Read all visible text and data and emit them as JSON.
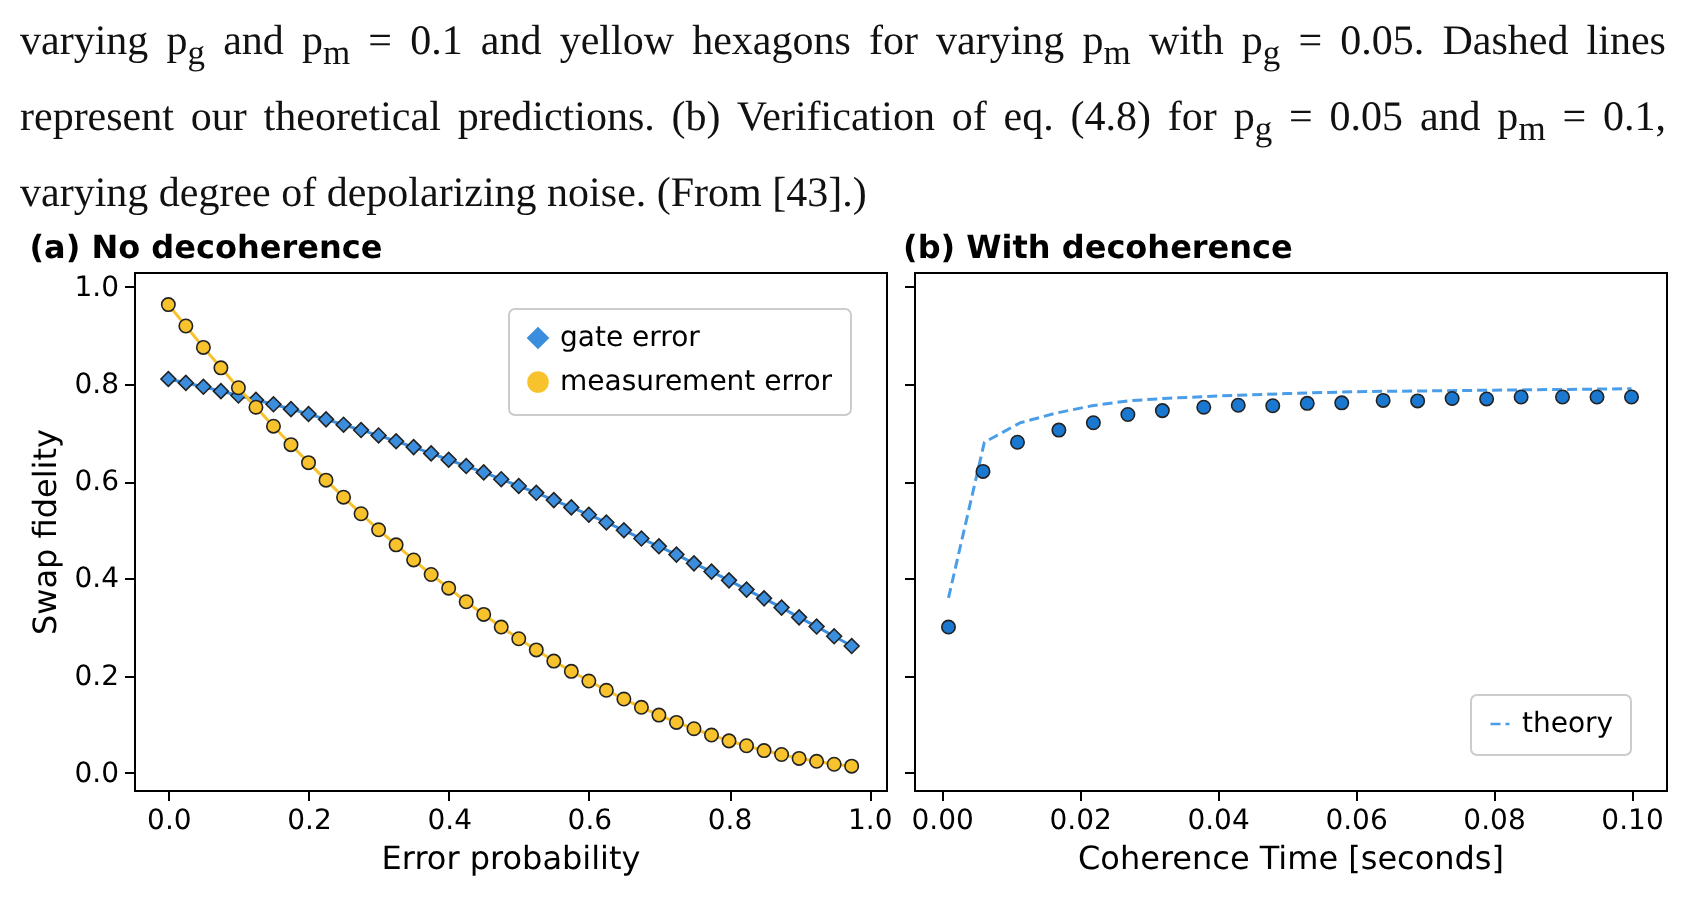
{
  "chart_data": [
    {
      "type": "line",
      "title": "(a) No decoherence",
      "xlabel": "Error probability",
      "ylabel": "Swap fidelity",
      "annotations": [
        "varying p$_{g}$ and p$_{m}$ = 0.1 and yellow hexagons for varying p$_{m}$ with p$_{g}$ = 0.05. Dashed lines represent our theoretical predictions. (b) Verification of eq. (4.8) for p$_{g}$ = 0.05 and p$_{m}$ = 0.1, varying degree of depolarizing noise. (From [43].)"
      ],
      "x": [
        0,
        0.025,
        0.05,
        0.075,
        0.1,
        0.125,
        0.15,
        0.175,
        0.2,
        0.225,
        0.25,
        0.275,
        0.3,
        0.325,
        0.35,
        0.375,
        0.4,
        0.425,
        0.45,
        0.475,
        0.5,
        0.525,
        0.55,
        0.575,
        0.6,
        0.625,
        0.65,
        0.675,
        0.7,
        0.725,
        0.75,
        0.775,
        0.8,
        0.825,
        0.85,
        0.875,
        0.9,
        0.925,
        0.95,
        0.975
      ],
      "series": [
        {
          "name": "gate error",
          "color": "#3b8ede",
          "marker": "diamond",
          "values": [
            0.81,
            0.802,
            0.794,
            0.785,
            0.776,
            0.767,
            0.758,
            0.748,
            0.738,
            0.727,
            0.716,
            0.705,
            0.694,
            0.682,
            0.67,
            0.657,
            0.644,
            0.631,
            0.618,
            0.604,
            0.59,
            0.576,
            0.561,
            0.546,
            0.531,
            0.515,
            0.499,
            0.482,
            0.466,
            0.449,
            0.431,
            0.414,
            0.396,
            0.377,
            0.359,
            0.34,
            0.32,
            0.301,
            0.281,
            0.261
          ]
        },
        {
          "name": "measurement error",
          "color": "#f7c22c",
          "marker": "circle",
          "values": [
            0.963,
            0.919,
            0.875,
            0.833,
            0.792,
            0.752,
            0.713,
            0.675,
            0.638,
            0.602,
            0.567,
            0.533,
            0.5,
            0.469,
            0.438,
            0.408,
            0.38,
            0.352,
            0.326,
            0.3,
            0.276,
            0.253,
            0.23,
            0.209,
            0.189,
            0.17,
            0.152,
            0.135,
            0.119,
            0.104,
            0.091,
            0.078,
            0.066,
            0.056,
            0.046,
            0.038,
            0.03,
            0.024,
            0.018,
            0.014
          ]
        }
      ],
      "line_style": "solid",
      "xlim": [
        -0.049,
        1.024
      ],
      "xticks": [
        {
          "value": 0,
          "label": "0.0"
        },
        0.2,
        0.4,
        0.6,
        0.8,
        {
          "value": 1,
          "label": "1.0"
        }
      ],
      "ylim": [
        -0.035,
        1.03
      ],
      "yticks": [
        {
          "value": 0,
          "label": "0.0"
        },
        0.2,
        0.4,
        0.6,
        0.8,
        {
          "value": 1,
          "label": "1.0"
        }
      ],
      "grid": false,
      "legend": "top right"
    },
    {
      "type": "scatter",
      "title": "(b) With decoherence",
      "xlabel": "Coherence Time [seconds]",
      "series": [
        {
          "name": "theory",
          "type": "line",
          "line_style": "dashed",
          "marker": "none",
          "color": "#4a9de8",
          "x": [
            0.001,
            0.0062,
            0.0114,
            0.0166,
            0.0218,
            0.027,
            0.0322,
            0.04,
            0.05,
            0.06,
            0.08,
            0.1
          ],
          "values": [
            0.36,
            0.68,
            0.72,
            0.74,
            0.755,
            0.765,
            0.77,
            0.775,
            0.78,
            0.784,
            0.787,
            0.79
          ]
        },
        {
          "color": "#1a78d0",
          "marker": "circle",
          "x": [
            0.001,
            0.006,
            0.011,
            0.017,
            0.022,
            0.027,
            0.032,
            0.038,
            0.043,
            0.048,
            0.053,
            0.058,
            0.064,
            0.069,
            0.074,
            0.079,
            0.084,
            0.09,
            0.095,
            0.1
          ],
          "values": [
            0.3,
            0.62,
            0.68,
            0.705,
            0.72,
            0.737,
            0.745,
            0.752,
            0.756,
            0.755,
            0.76,
            0.761,
            0.766,
            0.765,
            0.77,
            0.769,
            0.773,
            0.773,
            0.773,
            0.773
          ]
        }
      ],
      "xlim": [
        -0.004,
        0.105
      ],
      "xticks": [
        {
          "value": 0,
          "label": "0.00"
        },
        {
          "value": 0.02,
          "label": "0.02"
        },
        {
          "value": 0.04,
          "label": "0.04"
        },
        {
          "value": 0.06,
          "label": "0.06"
        },
        {
          "value": 0.08,
          "label": "0.08"
        },
        {
          "value": 0.1,
          "label": "0.10"
        }
      ],
      "ylim": [
        -0.035,
        1.03
      ],
      "yticks": [
        0,
        0.2,
        0.4,
        0.6,
        0.8,
        1
      ],
      "tick_labels": "x",
      "grid": false,
      "legend": "bottom right"
    }
  ]
}
